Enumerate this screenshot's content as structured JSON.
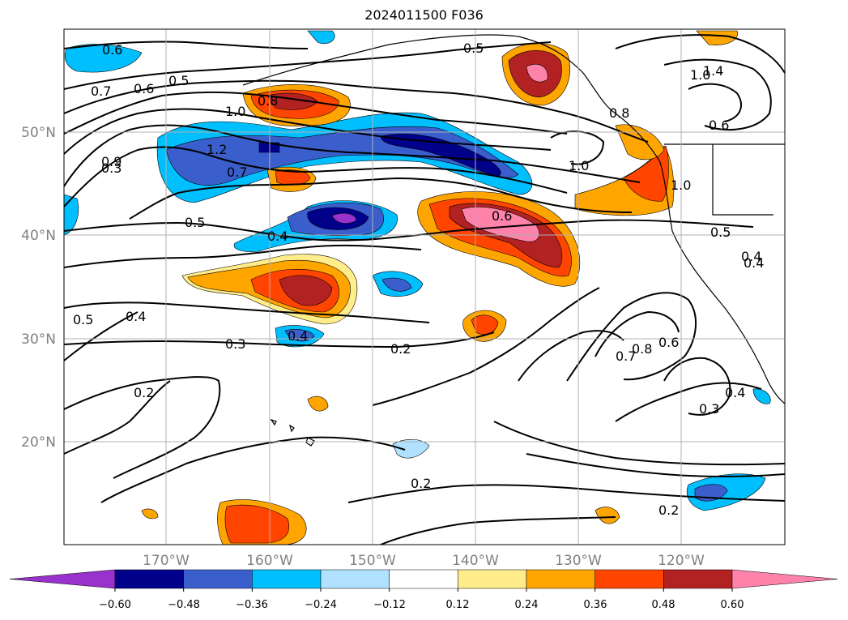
{
  "title": "2024011500 F036",
  "map": {
    "lon_labels": [
      "170°W",
      "160°W",
      "150°W",
      "140°W",
      "130°W",
      "120°W"
    ],
    "lat_labels": [
      "50°N",
      "40°N",
      "30°N",
      "20°N"
    ],
    "contour_labels": [
      "0.6",
      "0.5",
      "0.7",
      "0.6",
      "0.5",
      "0.8",
      "1.0",
      "1.2",
      "0.7",
      "0.9",
      "0.5",
      "0.4",
      "0.6",
      "1.0",
      "0.8",
      "1.4",
      "1.0",
      "0.6",
      "1.0",
      "0.5",
      "0.4",
      "0.2",
      "0.3",
      "0.5",
      "0.4",
      "0.2",
      "0.8",
      "0.7",
      "0.6",
      "0.4",
      "0.3",
      "0.2",
      "0.2",
      "0.3",
      "0.4",
      "0.4"
    ]
  },
  "colorbar": {
    "ticks": [
      "−0.60",
      "−0.48",
      "−0.36",
      "−0.24",
      "−0.12",
      "0.12",
      "0.24",
      "0.36",
      "0.48",
      "0.60"
    ],
    "colors": [
      "#9932cc",
      "#00008b",
      "#3a5fcd",
      "#00bfff",
      "#b0e2ff",
      "#ffffff",
      "#ffec8b",
      "#ffa500",
      "#ff4500",
      "#b22222",
      "#ff82ab"
    ]
  }
}
